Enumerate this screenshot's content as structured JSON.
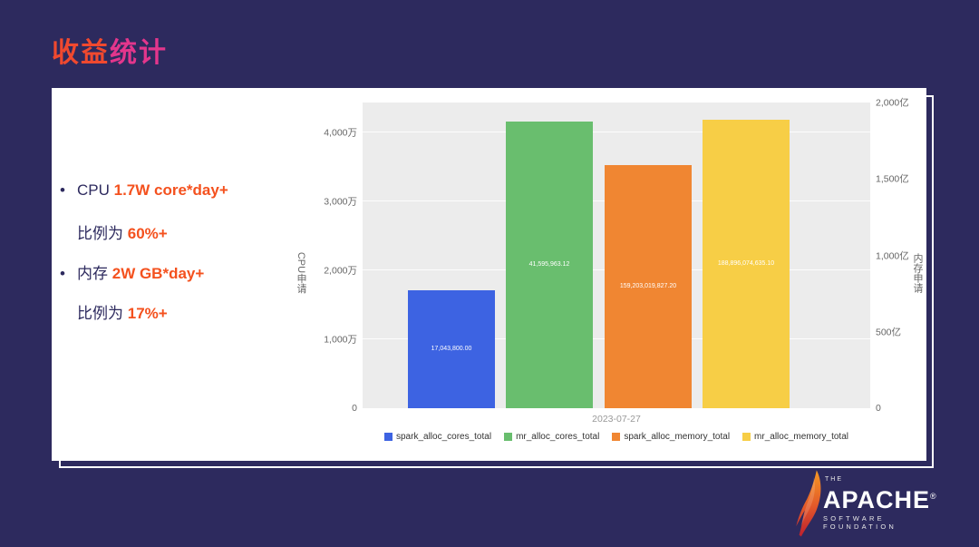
{
  "title": {
    "part1": "收益",
    "part2": "统计"
  },
  "stats": {
    "line1": {
      "bullet": "•",
      "prefix": "CPU ",
      "highlight": "1.7W core*day+"
    },
    "line2": {
      "bullet": "",
      "prefix": "比例为 ",
      "highlight": "60%+"
    },
    "line3": {
      "bullet": "•",
      "prefix": "内存 ",
      "highlight": "2W GB*day+"
    },
    "line4": {
      "bullet": "",
      "prefix": "比例为 ",
      "highlight": "17%+"
    }
  },
  "chart_data": {
    "type": "bar",
    "title": "",
    "x_categories": [
      "2023-07-27"
    ],
    "series": [
      {
        "name": "spark_alloc_cores_total",
        "axis": "left",
        "value": 17043800,
        "label": "17,043,800.00",
        "color": "#3D63E2"
      },
      {
        "name": "mr_alloc_cores_total",
        "axis": "left",
        "value": 41595963.12,
        "label": "41,595,963.12",
        "color": "#69BE6E"
      },
      {
        "name": "spark_alloc_memory_total",
        "axis": "right",
        "value": 159203019827.2,
        "label": "159,203,019,827.20",
        "color": "#F08632"
      },
      {
        "name": "mr_alloc_memory_total",
        "axis": "right",
        "value": 188896074635.1,
        "label": "188,896,074,635.10",
        "color": "#F7CE46"
      }
    ],
    "left_axis": {
      "title": "CPU申请",
      "max": 44340000,
      "ticks": [
        {
          "label": "0",
          "value": 0
        },
        {
          "label": "1,000万",
          "value": 10000000
        },
        {
          "label": "2,000万",
          "value": 20000000
        },
        {
          "label": "3,000万",
          "value": 30000000
        },
        {
          "label": "4,000万",
          "value": 40000000
        }
      ]
    },
    "right_axis": {
      "title": "内存申请",
      "max": 200000000000,
      "ticks": [
        {
          "label": "0",
          "value": 0
        },
        {
          "label": "500亿",
          "value": 50000000000
        },
        {
          "label": "1,000亿",
          "value": 100000000000
        },
        {
          "label": "1,500亿",
          "value": 150000000000
        },
        {
          "label": "2,000亿",
          "value": 200000000000
        }
      ]
    },
    "plot_bg": "#ECECEC",
    "legend_position": "bottom",
    "grid": true
  },
  "footer": {
    "the": "THE",
    "brand": "APACHE",
    "registered": "®",
    "tagline": "SOFTWARE FOUNDATION"
  }
}
